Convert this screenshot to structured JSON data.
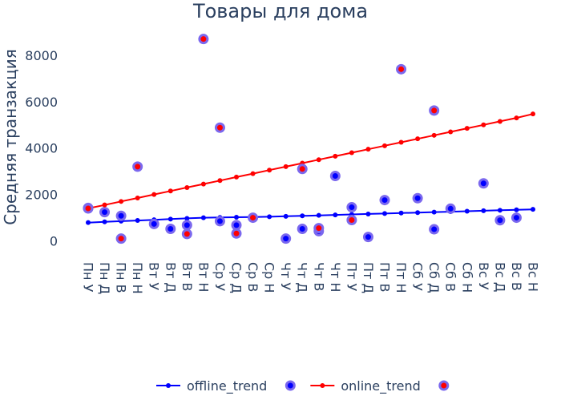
{
  "chart_data": {
    "type": "scatter",
    "title": "Товары для дома",
    "xlabel": "",
    "ylabel": "Средняя транзакция",
    "ylim": [
      -500,
      9000
    ],
    "yticks": [
      0,
      2000,
      4000,
      6000,
      8000
    ],
    "grid": false,
    "legend_position": "bottom-center",
    "categories": [
      "Пн У",
      "Пн Д",
      "Пн В",
      "Пн Н",
      "Вт У",
      "Вт Д",
      "Вт В",
      "Вт Н",
      "Ср У",
      "Ср Д",
      "Ср В",
      "Ср Н",
      "Чт У",
      "Чт Д",
      "Чт В",
      "Чт Н",
      "Пт У",
      "Пт Д",
      "Пт В",
      "Пт Н",
      "Сб У",
      "Сб Д",
      "Сб В",
      "Сб Н",
      "Вс У",
      "Вс Д",
      "Вс В",
      "Вс Н"
    ],
    "series": [
      {
        "name": "offline_trend",
        "kind": "trend",
        "color": "#0000ff",
        "values": [
          790,
          820,
          850,
          880,
          910,
          940,
          970,
          1000,
          1010,
          1020,
          1030,
          1040,
          1060,
          1080,
          1100,
          1120,
          1140,
          1160,
          1180,
          1200,
          1220,
          1240,
          1260,
          1280,
          1300,
          1320,
          1340,
          1360
        ]
      },
      {
        "name": "",
        "kind": "points",
        "color": "#0000ff",
        "ring": "#7b68ee",
        "values": [
          1420,
          1240,
          1080,
          null,
          730,
          520,
          680,
          null,
          850,
          680,
          null,
          null,
          100,
          520,
          420,
          2800,
          1450,
          170,
          1760,
          null,
          1840,
          500,
          1390,
          null,
          2480,
          890,
          1000,
          null
        ]
      },
      {
        "name": "online_trend",
        "kind": "trend",
        "color": "#ff0000",
        "values": [
          1400,
          1550,
          1700,
          1850,
          2000,
          2150,
          2300,
          2450,
          2600,
          2750,
          2900,
          3050,
          3200,
          3350,
          3500,
          3650,
          3800,
          3950,
          4100,
          4250,
          4400,
          4550,
          4700,
          4850,
          5000,
          5150,
          5300,
          5470
        ]
      },
      {
        "name": "",
        "kind": "points",
        "color": "#ff0000",
        "ring": "#7b68ee",
        "values": [
          1400,
          null,
          100,
          3200,
          null,
          null,
          300,
          8700,
          4880,
          320,
          1000,
          null,
          null,
          3100,
          550,
          null,
          900,
          null,
          null,
          7400,
          null,
          5620,
          null,
          null,
          null,
          null,
          null,
          null
        ]
      }
    ]
  }
}
